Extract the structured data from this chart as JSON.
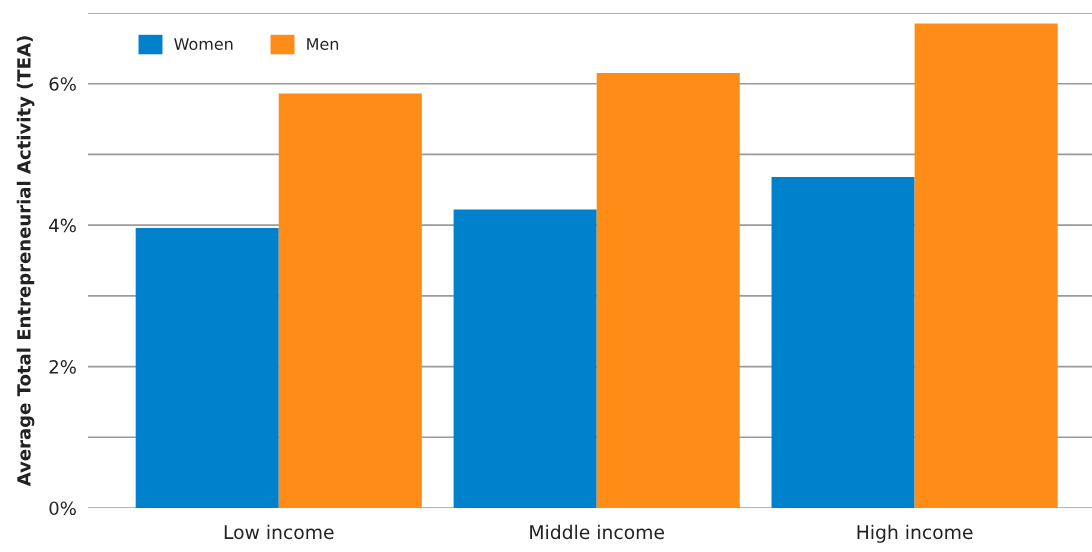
{
  "chart_data": {
    "type": "bar",
    "ylabel": "Average Total Entrepreneurial Activity (TEA)",
    "categories": [
      "Low income",
      "Middle income",
      "High income"
    ],
    "series": [
      {
        "name": "Women",
        "color": "#0081cc",
        "values": [
          3.96,
          4.22,
          4.68
        ]
      },
      {
        "name": "Men",
        "color": "#fe8c17",
        "values": [
          5.86,
          6.15,
          6.85
        ]
      }
    ],
    "ylim": [
      0,
      7
    ],
    "yticks": [
      {
        "value": 0,
        "label": "0%"
      },
      {
        "value": 1,
        "label": null
      },
      {
        "value": 2,
        "label": "2%"
      },
      {
        "value": 3,
        "label": null
      },
      {
        "value": 4,
        "label": "4%"
      },
      {
        "value": 5,
        "label": null
      },
      {
        "value": 6,
        "label": "6%"
      },
      {
        "value": 7,
        "label": null
      }
    ],
    "grid": "y",
    "legend": "top left"
  }
}
